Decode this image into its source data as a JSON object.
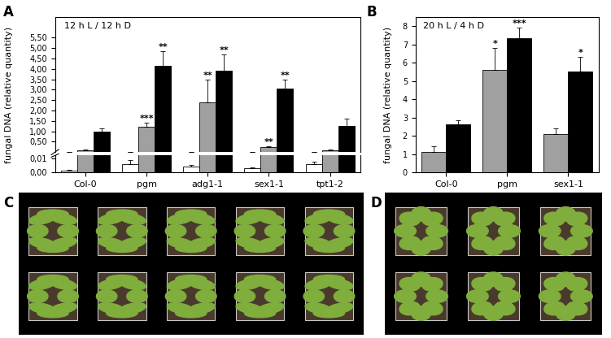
{
  "chart_data": [
    {
      "type": "bar",
      "panel_label": "A",
      "title": "12 h L / 12 h D",
      "ylabel": "fungal DNA (relative quantity)",
      "categories": [
        "Col-0",
        "pgm",
        "adg1-1",
        "sex1-1",
        "tpt1-2"
      ],
      "series": [
        {
          "color": "#ffffff",
          "values": [
            0.0015,
            0.006,
            0.004,
            0.003,
            0.006
          ],
          "errors": [
            0.0005,
            0.003,
            0.0015,
            0.0005,
            0.0015
          ],
          "significance": [
            null,
            null,
            null,
            null,
            null
          ]
        },
        {
          "color": "#a0a0a0",
          "values": [
            0.1,
            1.2,
            2.4,
            0.25,
            0.1
          ],
          "errors": [
            0.01,
            0.2,
            1.1,
            0.05,
            0.02
          ],
          "significance": [
            null,
            "***",
            "**",
            "**",
            null
          ]
        },
        {
          "color": "#000000",
          "values": [
            1.0,
            4.15,
            3.9,
            3.07,
            1.25
          ],
          "errors": [
            0.15,
            0.7,
            0.8,
            0.4,
            0.35
          ],
          "significance": [
            null,
            "**",
            "**",
            "**",
            null
          ]
        }
      ],
      "ylim": [
        0,
        6.5
      ],
      "yticks": [
        {
          "value": 0.5,
          "label": "0,50"
        },
        {
          "value": 1.0,
          "label": "1,00"
        },
        {
          "value": 1.5,
          "label": "1,50"
        },
        {
          "value": 2.0,
          "label": "2,00"
        },
        {
          "value": 2.5,
          "label": "2,50"
        },
        {
          "value": 3.0,
          "label": "3,00"
        },
        {
          "value": 3.5,
          "label": "3,50"
        },
        {
          "value": 4.0,
          "label": "4,00"
        },
        {
          "value": 4.5,
          "label": "4,50"
        },
        {
          "value": 5.0,
          "label": "5,00"
        },
        {
          "value": 5.5,
          "label": "5,50"
        }
      ],
      "ylim_lower": [
        0,
        0.012
      ],
      "yticks_lower": [
        {
          "value": 0,
          "label": "0,00"
        },
        {
          "value": 0.01,
          "label": "0,01"
        }
      ]
    },
    {
      "type": "bar",
      "panel_label": "B",
      "title": "20 h L / 4 h D",
      "ylabel": "fungal DNA (relative quantity)",
      "categories": [
        "Col-0",
        "pgm",
        "sex1-1"
      ],
      "series": [
        {
          "color": "#a0a0a0",
          "values": [
            1.1,
            5.6,
            2.1
          ],
          "errors": [
            0.35,
            1.2,
            0.3
          ],
          "significance": [
            null,
            "*",
            null
          ]
        },
        {
          "color": "#000000",
          "values": [
            2.65,
            7.35,
            5.5
          ],
          "errors": [
            0.2,
            0.55,
            0.8
          ],
          "significance": [
            null,
            "***",
            "*"
          ]
        }
      ],
      "ylim": [
        0,
        8.5
      ],
      "yticks": [
        0,
        1,
        2,
        3,
        4,
        5,
        6,
        7,
        8
      ]
    }
  ],
  "images": [
    {
      "panel_label": "C"
    },
    {
      "panel_label": "D"
    }
  ]
}
